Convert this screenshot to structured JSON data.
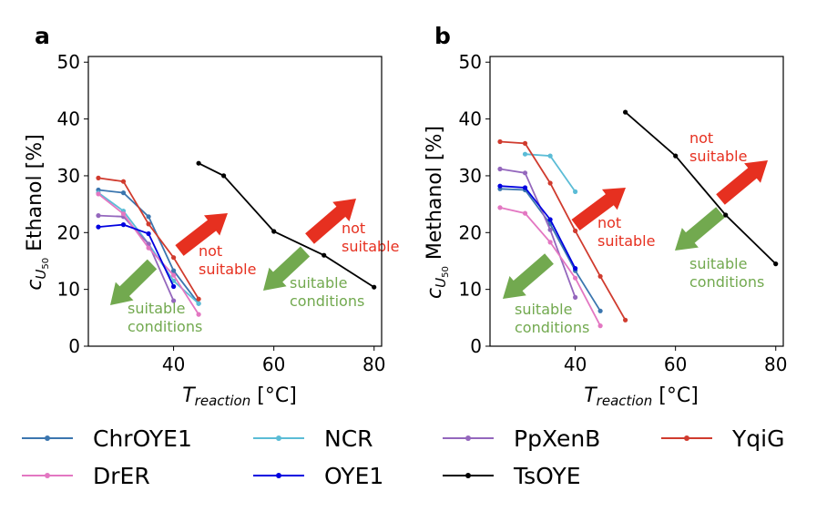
{
  "chart_data": [
    {
      "type": "line",
      "panel_label": "a",
      "ylabel_prefix": "c",
      "ylabel_sub": "U",
      "ylabel_subsub": "50",
      "ylabel": "Ethanol [%]",
      "xlabel_prefix": "T",
      "xlabel_sub": "reaction",
      "xlabel": "[°C]",
      "xlim": [
        23,
        81.5
      ],
      "ylim": [
        0,
        51
      ],
      "xticks": [
        40,
        60,
        80
      ],
      "yticks": [
        0,
        10,
        20,
        30,
        40,
        50
      ],
      "series": [
        {
          "name": "ChrOYE1",
          "color": "#3b76af",
          "x": [
            25,
            30,
            35,
            40,
            45
          ],
          "y": [
            27.5,
            27.0,
            22.8,
            13.3,
            7.5
          ]
        },
        {
          "name": "NCR",
          "color": "#5bbcd6",
          "x": [
            25,
            30,
            35,
            40,
            45
          ],
          "y": [
            27.0,
            23.8,
            18.0,
            11.5,
            7.5
          ]
        },
        {
          "name": "PpXenB",
          "color": "#9467bd",
          "x": [
            25,
            30,
            35,
            40
          ],
          "y": [
            23.0,
            22.8,
            18.0,
            8.0
          ]
        },
        {
          "name": "YqiG",
          "color": "#d03b2e",
          "x": [
            25,
            30,
            35,
            40,
            45
          ],
          "y": [
            29.6,
            29.0,
            21.5,
            15.6,
            8.3
          ]
        },
        {
          "name": "DrER",
          "color": "#e377c2",
          "x": [
            25,
            30,
            35,
            40,
            45
          ],
          "y": [
            26.8,
            23.3,
            17.3,
            12.5,
            5.6
          ]
        },
        {
          "name": "OYE1",
          "color": "#0000e0",
          "x": [
            25,
            30,
            35,
            40
          ],
          "y": [
            21.0,
            21.4,
            19.8,
            10.5
          ]
        },
        {
          "name": "TsOYE",
          "color": "#000000",
          "x": [
            45,
            50,
            60,
            70,
            80
          ],
          "y": [
            32.2,
            30.0,
            20.2,
            16.0,
            10.4
          ]
        }
      ],
      "annotations": [
        {
          "text": [
            "not",
            "suitable"
          ],
          "color": "#e63020"
        },
        {
          "text": [
            "suitable",
            "conditions"
          ],
          "color": "#72a94f"
        },
        {
          "text": [
            "not",
            "suitable"
          ],
          "color": "#e63020"
        },
        {
          "text": [
            "suitable",
            "conditions"
          ],
          "color": "#72a94f"
        }
      ]
    },
    {
      "type": "line",
      "panel_label": "b",
      "ylabel_prefix": "c",
      "ylabel_sub": "U",
      "ylabel_subsub": "50",
      "ylabel": "Methanol [%]",
      "xlabel_prefix": "T",
      "xlabel_sub": "reaction",
      "xlabel": "[°C]",
      "xlim": [
        23,
        81.5
      ],
      "ylim": [
        0,
        51
      ],
      "xticks": [
        40,
        60,
        80
      ],
      "yticks": [
        0,
        10,
        20,
        30,
        40,
        50
      ],
      "series": [
        {
          "name": "ChrOYE1",
          "color": "#3b76af",
          "x": [
            25,
            30,
            35,
            40,
            45
          ],
          "y": [
            27.7,
            27.5,
            21.5,
            13.3,
            6.2
          ]
        },
        {
          "name": "NCR",
          "color": "#5bbcd6",
          "x": [
            30,
            35,
            40
          ],
          "y": [
            33.8,
            33.5,
            27.2
          ]
        },
        {
          "name": "PpXenB",
          "color": "#9467bd",
          "x": [
            25,
            30,
            35,
            40
          ],
          "y": [
            31.2,
            30.5,
            20.5,
            8.6
          ]
        },
        {
          "name": "YqiG",
          "color": "#d03b2e",
          "x": [
            25,
            30,
            35,
            40,
            45,
            50
          ],
          "y": [
            36.0,
            35.7,
            28.7,
            20.3,
            12.3,
            4.6
          ]
        },
        {
          "name": "DrER",
          "color": "#e377c2",
          "x": [
            25,
            30,
            35,
            40,
            45
          ],
          "y": [
            24.4,
            23.4,
            18.3,
            12.0,
            3.6
          ]
        },
        {
          "name": "OYE1",
          "color": "#0000e0",
          "x": [
            25,
            30,
            35,
            40
          ],
          "y": [
            28.2,
            27.9,
            22.3,
            13.7
          ]
        },
        {
          "name": "TsOYE",
          "color": "#000000",
          "x": [
            50,
            60,
            70,
            80
          ],
          "y": [
            41.2,
            33.5,
            23.1,
            14.5
          ]
        }
      ],
      "annotations": [
        {
          "text": [
            "not",
            "suitable"
          ],
          "color": "#e63020"
        },
        {
          "text": [
            "suitable",
            "conditions"
          ],
          "color": "#72a94f"
        },
        {
          "text": [
            "not",
            "suitable"
          ],
          "color": "#e63020"
        },
        {
          "text": [
            "suitable",
            "conditions"
          ],
          "color": "#72a94f"
        }
      ]
    }
  ],
  "legend": {
    "placement": "bottom",
    "entries": [
      {
        "name": "ChrOYE1",
        "color": "#3b76af"
      },
      {
        "name": "NCR",
        "color": "#5bbcd6"
      },
      {
        "name": "PpXenB",
        "color": "#9467bd"
      },
      {
        "name": "YqiG",
        "color": "#d03b2e"
      },
      {
        "name": "DrER",
        "color": "#e377c2"
      },
      {
        "name": "OYE1",
        "color": "#0000e0"
      },
      {
        "name": "TsOYE",
        "color": "#000000"
      }
    ]
  },
  "arrow_colors": {
    "up": "#e63020",
    "down": "#72a94f"
  }
}
